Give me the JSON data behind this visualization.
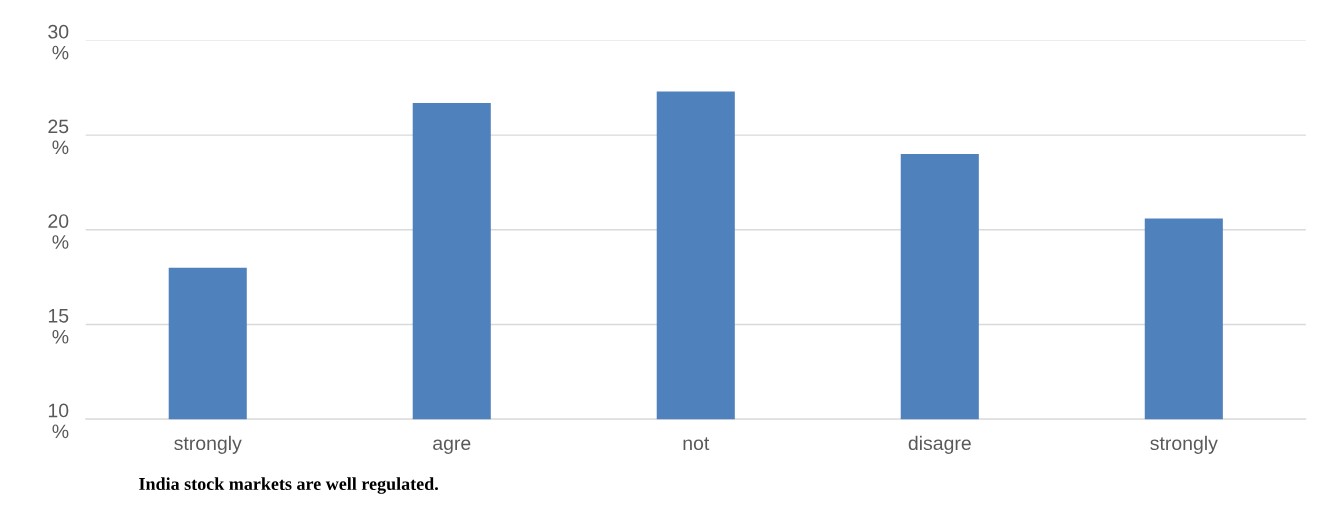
{
  "chart_data": {
    "type": "bar",
    "categories": [
      "strongly",
      "agre",
      "not",
      "disagre",
      "strongly"
    ],
    "values": [
      18.0,
      26.7,
      27.3,
      24.0,
      20.6
    ],
    "color": "#4f81bd",
    "ylim": [
      10,
      30
    ],
    "yticks": [
      {
        "value": 10,
        "label": "10\n%"
      },
      {
        "value": 15,
        "label": "15\n%"
      },
      {
        "value": 20,
        "label": "20\n%"
      },
      {
        "value": 25,
        "label": "25\n%"
      },
      {
        "value": 30,
        "label": "30\n%"
      }
    ],
    "grid": "y",
    "annotations": [
      "India stock markets are well regulated."
    ]
  }
}
